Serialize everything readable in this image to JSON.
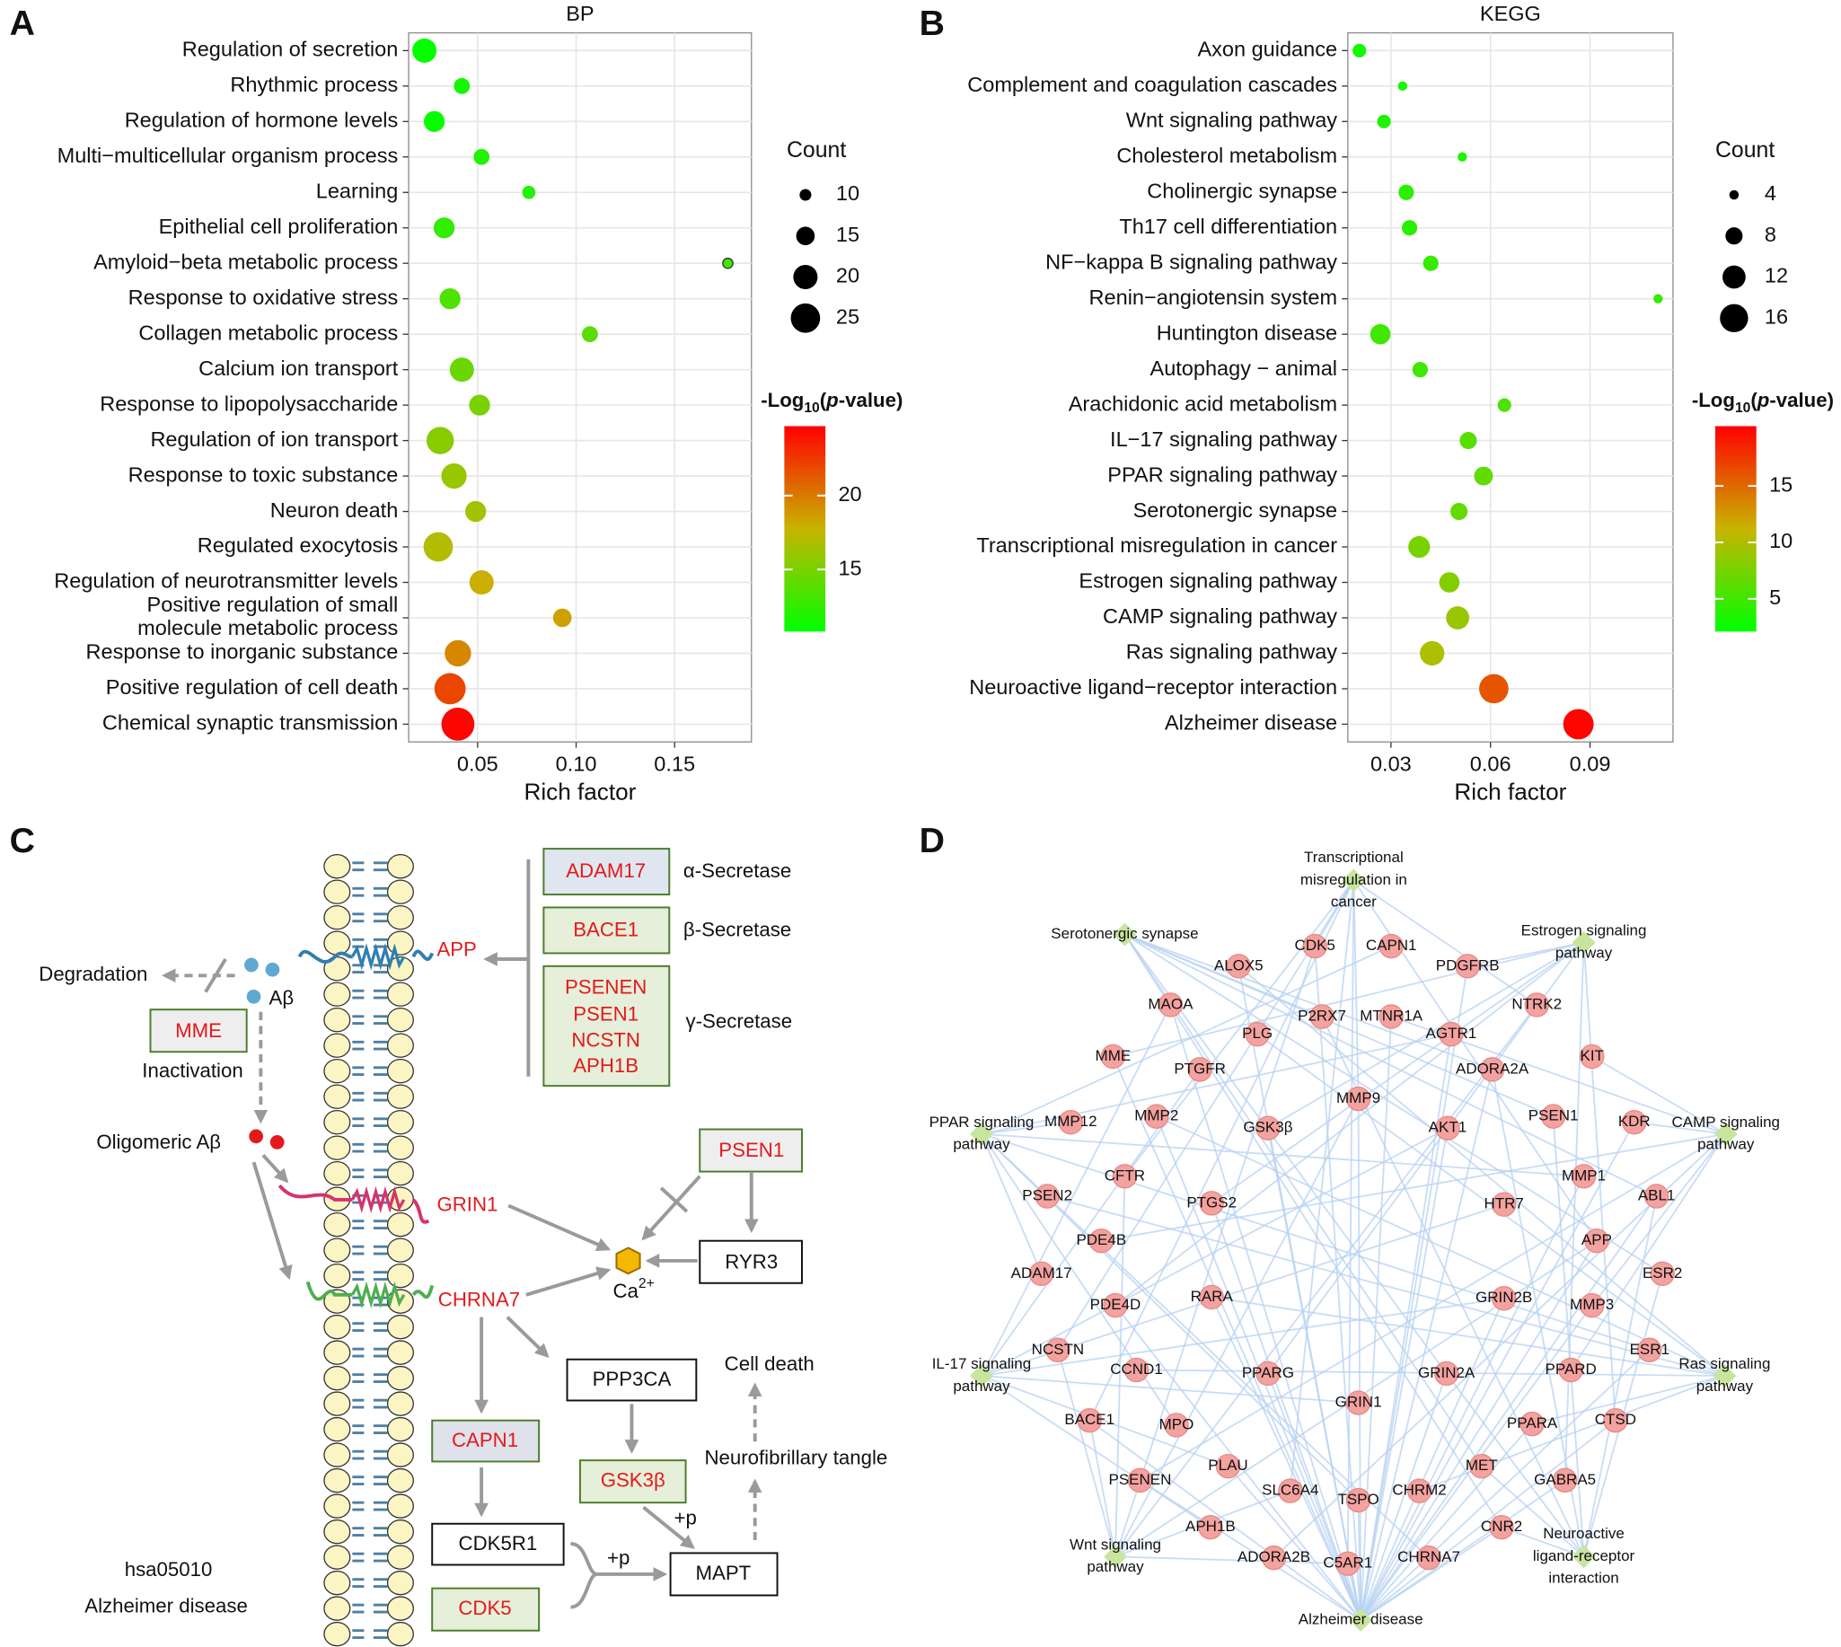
{
  "panel_labels": [
    "A",
    "B",
    "C",
    "D"
  ],
  "chart_data": [
    {
      "type": "dot",
      "title": "BP",
      "xlabel": "Rich factor",
      "categories": [
        "Regulation of secretion",
        "Rhythmic process",
        "Regulation of hormone levels",
        "Multi−multicellular organism process",
        "Learning",
        "Epithelial cell proliferation",
        "Amyloid−beta metabolic process",
        "Response to oxidative stress",
        "Collagen metabolic process",
        "Calcium ion transport",
        "Response to lipopolysaccharide",
        "Regulation of ion transport",
        "Response to toxic substance",
        "Neuron death",
        "Regulated exocytosis",
        "Regulation of neurotransmitter levels",
        "Positive regulation of small\nmolecule metabolic process",
        "Response to inorganic substance",
        "Positive regulation of cell death",
        "Chemical synaptic transmission"
      ],
      "values": [
        0.023,
        0.042,
        0.028,
        0.052,
        0.076,
        0.033,
        0.177,
        0.036,
        0.107,
        0.042,
        0.051,
        0.031,
        0.038,
        0.049,
        0.03,
        0.052,
        0.093,
        0.04,
        0.036,
        0.04
      ],
      "counts": [
        20,
        13,
        17,
        13,
        11,
        17,
        9,
        17,
        13,
        20,
        17,
        23,
        21,
        17,
        25,
        20,
        15,
        22,
        27,
        29
      ],
      "color_values": [
        11,
        11.5,
        11,
        12,
        12,
        12.5,
        13,
        13.5,
        14,
        14.5,
        15,
        15.5,
        16,
        16.5,
        17,
        18,
        18.5,
        19.5,
        22,
        24.5
      ],
      "xlim": [
        0.015,
        0.189
      ],
      "xticks": [
        0.05,
        {
          "value": 0.1,
          "label": "0.10"
        },
        0.15
      ],
      "grid": true,
      "size_legend": {
        "title": "Count",
        "values": [
          10,
          15,
          20,
          25
        ]
      },
      "colorbar": {
        "title": [
          "-Log",
          "10",
          "(",
          "p",
          "-value)"
        ],
        "lim": [
          10.8,
          24.7
        ],
        "ticks": [
          15,
          20
        ],
        "colors": [
          "#00ff00",
          "#c8b400",
          "#ff0000"
        ]
      }
    },
    {
      "type": "dot",
      "title": "KEGG",
      "xlabel": "Rich factor",
      "categories": [
        "Axon guidance",
        "Complement and coagulation cascades",
        "Wnt signaling pathway",
        "Cholesterol metabolism",
        "Cholinergic synapse",
        "Th17 cell differentiation",
        "NF−kappa B signaling pathway",
        "Renin−angiotensin system",
        "Huntington disease",
        "Autophagy − animal",
        "Arachidonic acid metabolism",
        "IL−17 signaling pathway",
        "PPAR signaling pathway",
        "Serotonergic synapse",
        "Transcriptional misregulation in cancer",
        "Estrogen signaling pathway",
        "CAMP signaling pathway",
        "Ras signaling pathway",
        "Neuroactive ligand−receptor interaction",
        "Alzheimer disease"
      ],
      "values": [
        0.0205,
        0.0335,
        0.0279,
        0.0515,
        0.0346,
        0.0356,
        0.042,
        0.1105,
        0.0268,
        0.0388,
        0.0642,
        0.0533,
        0.0579,
        0.0505,
        0.0385,
        0.0476,
        0.0501,
        0.0424,
        0.061,
        0.0865
      ],
      "counts": [
        6,
        4,
        6,
        4,
        7,
        7,
        7,
        4,
        10,
        7,
        6,
        8,
        9,
        8,
        11,
        10,
        12,
        13,
        17,
        18
      ],
      "color_values": [
        3,
        3,
        3.5,
        3.5,
        4,
        4,
        4.5,
        4.5,
        5,
        5,
        5.5,
        6,
        6.5,
        6.5,
        7.5,
        8,
        9,
        10,
        16,
        20
      ],
      "xlim": [
        0.017,
        0.115
      ],
      "xticks": [
        0.03,
        0.06,
        0.09
      ],
      "grid": true,
      "size_legend": {
        "title": "Count",
        "values": [
          4,
          8,
          12,
          16
        ]
      },
      "colorbar": {
        "title": [
          "-Log",
          "10",
          "(",
          "p",
          "-value)"
        ],
        "lim": [
          2.1,
          20.3
        ],
        "ticks": [
          5,
          10,
          15
        ],
        "colors": [
          "#00ff00",
          "#c8b400",
          "#ff0000"
        ]
      }
    }
  ],
  "pathway": {
    "app": "APP",
    "grin1": "GRIN1",
    "chrna7": "CHRNA7",
    "secretases": [
      {
        "genes": [
          "ADAM17"
        ],
        "name": "α-Secretase"
      },
      {
        "genes": [
          "BACE1"
        ],
        "name": "β-Secretase"
      },
      {
        "genes": [
          "PSENEN",
          "PSEN1",
          "NCSTN",
          "APH1B"
        ],
        "name": "γ-Secretase"
      }
    ],
    "degradation": "Degradation",
    "abeta": "Aβ",
    "mme": "MME",
    "inactivation": "Inactivation",
    "oligomeric": "Oligomeric Aβ",
    "psen1": "PSEN1",
    "ryr3": "RYR3",
    "calcium": [
      "Ca",
      "2+"
    ],
    "ppp3ca": "PPP3CA",
    "cell_death": "Cell death",
    "tangle": "Neurofibrillary tangle",
    "capn1": "CAPN1",
    "gsk3b": "GSK3β",
    "cdk5r1": "CDK5R1",
    "mapt": "MAPT",
    "cdk5": "CDK5",
    "phospho": [
      "+p",
      "+p"
    ],
    "pathway_id": "hsa05010",
    "pathway_name": "Alzheimer disease"
  },
  "network": {
    "pathways": [
      [
        "Transcriptional",
        "misregulation in",
        "cancer"
      ],
      [
        "Serotonergic synapse"
      ],
      [
        "Estrogen signaling",
        "pathway"
      ],
      [
        "PPAR signaling",
        "pathway"
      ],
      [
        "CAMP signaling",
        "pathway"
      ],
      [
        "IL-17 signaling",
        "pathway"
      ],
      [
        "Ras signaling",
        "pathway"
      ],
      [
        "Wnt signaling",
        "pathway"
      ],
      [
        "Neuroactive",
        "ligand-receptor",
        "interaction"
      ],
      [
        "Alzheimer disease"
      ]
    ],
    "genes": [
      "CDK5",
      "CAPN1",
      "ALOX5",
      "PDGFRB",
      "MAOA",
      "P2RX7",
      "MTNR1A",
      "NTRK2",
      "AGTR1",
      "PLG",
      "MME",
      "PTGFR",
      "ADORA2A",
      "KIT",
      "MMP9",
      "MMP12",
      "MMP2",
      "GSK3β",
      "AKT1",
      "PSEN1",
      "KDR",
      "CFTR",
      "MMP1",
      "PSEN2",
      "PTGS2",
      "HTR7",
      "ABL1",
      "PDE4B",
      "APP",
      "ADAM17",
      "RARA",
      "PDE4D",
      "GRIN2B",
      "ESR2",
      "MMP3",
      "NCSTN",
      "ESR1",
      "CCND1",
      "PPARG",
      "GRIN1",
      "GRIN2A",
      "PPARD",
      "BACE1",
      "MPO",
      "PPARA",
      "CTSD",
      "PLAU",
      "MET",
      "PSENEN",
      "SLC6A4",
      "TSPO",
      "CHRM2",
      "GABRA5",
      "APH1B",
      "CNR2",
      "ADORA2B",
      "C5AR1",
      "CHRNA7"
    ]
  }
}
